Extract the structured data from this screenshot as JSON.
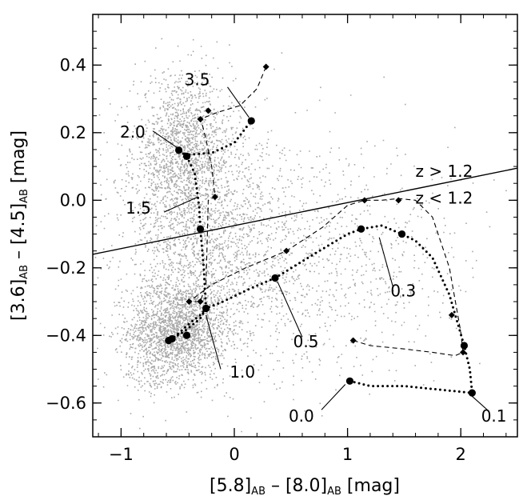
{
  "chart_data": {
    "type": "scatter",
    "title": "",
    "xlabel": {
      "parts": [
        "[5.8]",
        "AB",
        " – [8.0]",
        "AB",
        " [mag]"
      ]
    },
    "ylabel": {
      "parts": [
        "[3.6]",
        "AB",
        " – [4.5]",
        "AB",
        " [mag]"
      ]
    },
    "xlim": [
      -1.25,
      2.5
    ],
    "ylim": [
      -0.7,
      0.55
    ],
    "x_ticks": [
      -1,
      0,
      1,
      2
    ],
    "x_tick_labels": [
      "−1",
      "0",
      "1",
      "2"
    ],
    "y_ticks": [
      -0.6,
      -0.4,
      -0.2,
      0.0,
      0.2,
      0.4
    ],
    "y_tick_labels": [
      "−0.6",
      "−0.4",
      "−0.2",
      "0.0",
      "0.2",
      "0.4"
    ],
    "grid": false,
    "background_cloud": {
      "color": "#a8a8a8",
      "description": "gray field galaxies",
      "blobs": [
        {
          "cx": -0.5,
          "cy": -0.38,
          "sx": 0.22,
          "sy": 0.07,
          "n": 1800
        },
        {
          "cx": -0.45,
          "cy": 0.15,
          "sx": 0.22,
          "sy": 0.11,
          "n": 1500
        },
        {
          "cx": -0.3,
          "cy": -0.12,
          "sx": 0.35,
          "sy": 0.16,
          "n": 1400
        },
        {
          "cx": 0.3,
          "cy": -0.15,
          "sx": 0.6,
          "sy": 0.2,
          "n": 900
        },
        {
          "cx": 1.1,
          "cy": -0.2,
          "sx": 0.55,
          "sy": 0.15,
          "n": 350
        },
        {
          "cx": -0.7,
          "cy": -0.5,
          "sx": 0.15,
          "sy": 0.05,
          "n": 150
        }
      ]
    },
    "divider": {
      "x": [
        -1.25,
        2.5
      ],
      "y": [
        -0.16,
        0.095
      ],
      "color": "#000000"
    },
    "region_labels": [
      {
        "text": "z > 1.2",
        "x": 1.6,
        "y": 0.07
      },
      {
        "text": "z < 1.2",
        "x": 1.6,
        "y": -0.01
      }
    ],
    "series": [
      {
        "style": "dotted",
        "marker": "circle",
        "x": [
          1.02,
          1.2,
          1.5,
          1.8,
          2.1,
          2.08,
          2.03,
          1.9,
          1.75,
          1.6,
          1.48,
          1.3,
          1.12,
          1.0,
          0.75,
          0.36,
          0.15,
          -0.1,
          -0.25,
          -0.3,
          -0.45,
          -0.55,
          -0.58,
          -0.48,
          -0.38,
          -0.3,
          -0.25,
          -0.27,
          -0.3,
          -0.31,
          -0.33,
          -0.35,
          -0.42,
          -0.46,
          -0.49,
          -0.5,
          -0.46,
          -0.4,
          -0.2,
          0.0,
          0.15
        ],
        "y": [
          -0.535,
          -0.55,
          -0.55,
          -0.56,
          -0.57,
          -0.5,
          -0.43,
          -0.28,
          -0.17,
          -0.12,
          -0.1,
          -0.075,
          -0.085,
          -0.1,
          -0.15,
          -0.23,
          -0.26,
          -0.3,
          -0.32,
          -0.35,
          -0.39,
          -0.41,
          -0.42,
          -0.39,
          -0.36,
          -0.34,
          -0.32,
          -0.2,
          -0.085,
          -0.02,
          0.03,
          0.08,
          0.13,
          0.14,
          0.145,
          0.148,
          0.14,
          0.135,
          0.14,
          0.17,
          0.235
        ],
        "markers": [
          {
            "x": 1.02,
            "y": -0.535
          },
          {
            "x": 2.1,
            "y": -0.57
          },
          {
            "x": 2.03,
            "y": -0.43
          },
          {
            "x": 1.48,
            "y": -0.1
          },
          {
            "x": 1.12,
            "y": -0.085
          },
          {
            "x": 0.36,
            "y": -0.23
          },
          {
            "x": -0.25,
            "y": -0.32
          },
          {
            "x": -0.42,
            "y": -0.4
          },
          {
            "x": -0.55,
            "y": -0.41
          },
          {
            "x": -0.58,
            "y": -0.415
          },
          {
            "x": -0.3,
            "y": -0.085
          },
          {
            "x": -0.42,
            "y": 0.13
          },
          {
            "x": -0.49,
            "y": 0.148
          },
          {
            "x": 0.15,
            "y": 0.235
          }
        ]
      },
      {
        "style": "dashed",
        "marker": "diamond",
        "x": [
          1.05,
          1.2,
          1.5,
          1.75,
          1.95,
          2.02,
          2.0,
          1.9,
          1.75,
          1.6,
          1.45,
          1.3,
          1.15,
          1.0,
          0.78,
          0.46,
          0.1,
          -0.2,
          -0.4,
          -0.3,
          -0.25,
          -0.24,
          -0.23,
          -0.17,
          -0.2,
          -0.25,
          -0.28,
          -0.3,
          -0.15,
          0.05,
          0.2,
          0.28
        ],
        "y": [
          -0.415,
          -0.43,
          -0.44,
          -0.45,
          -0.46,
          -0.45,
          -0.39,
          -0.2,
          -0.05,
          0.0,
          0.005,
          0.0,
          0.0,
          -0.015,
          -0.08,
          -0.15,
          -0.2,
          -0.25,
          -0.3,
          -0.3,
          -0.25,
          -0.13,
          0.0,
          0.01,
          0.1,
          0.18,
          0.22,
          0.24,
          0.26,
          0.28,
          0.33,
          0.395
        ],
        "markers": [
          {
            "x": 1.05,
            "y": -0.415
          },
          {
            "x": 2.02,
            "y": -0.45
          },
          {
            "x": 1.92,
            "y": -0.34
          },
          {
            "x": 1.45,
            "y": 0.0
          },
          {
            "x": 1.15,
            "y": 0.0
          },
          {
            "x": 0.46,
            "y": -0.15
          },
          {
            "x": -0.4,
            "y": -0.3
          },
          {
            "x": -0.3,
            "y": -0.3
          },
          {
            "x": -0.17,
            "y": 0.01
          },
          {
            "x": -0.3,
            "y": 0.24
          },
          {
            "x": -0.23,
            "y": 0.265
          },
          {
            "x": 0.28,
            "y": 0.395
          }
        ]
      }
    ],
    "annotations": [
      {
        "text": "0.0",
        "tx": 0.48,
        "ty": -0.655,
        "lx1": 0.77,
        "ly1": -0.62,
        "lx2": 0.98,
        "ly2": -0.545
      },
      {
        "text": "0.1",
        "tx": 2.18,
        "ty": -0.655,
        "lx1": 2.25,
        "ly1": -0.625,
        "lx2": 2.1,
        "ly2": -0.58
      },
      {
        "text": "1.0",
        "tx": -0.04,
        "ty": -0.525,
        "lx1": -0.12,
        "ly1": -0.5,
        "lx2": -0.25,
        "ly2": -0.34
      },
      {
        "text": "0.5",
        "tx": 0.52,
        "ty": -0.435,
        "lx1": 0.6,
        "ly1": -0.405,
        "lx2": 0.38,
        "ly2": -0.24
      },
      {
        "text": "0.3",
        "tx": 1.38,
        "ty": -0.285,
        "lx1": 1.4,
        "ly1": -0.255,
        "lx2": 1.28,
        "ly2": -0.11
      },
      {
        "text": "1.5",
        "tx": -0.96,
        "ty": -0.04,
        "lx1": -0.62,
        "ly1": -0.035,
        "lx2": -0.32,
        "ly2": 0.01
      },
      {
        "text": "2.0",
        "tx": -1.01,
        "ty": 0.185,
        "lx1": -0.72,
        "ly1": 0.205,
        "lx2": -0.48,
        "ly2": 0.15
      },
      {
        "text": "3.5",
        "tx": -0.44,
        "ty": 0.34,
        "lx1": -0.06,
        "ly1": 0.335,
        "lx2": 0.13,
        "ly2": 0.245
      }
    ]
  }
}
